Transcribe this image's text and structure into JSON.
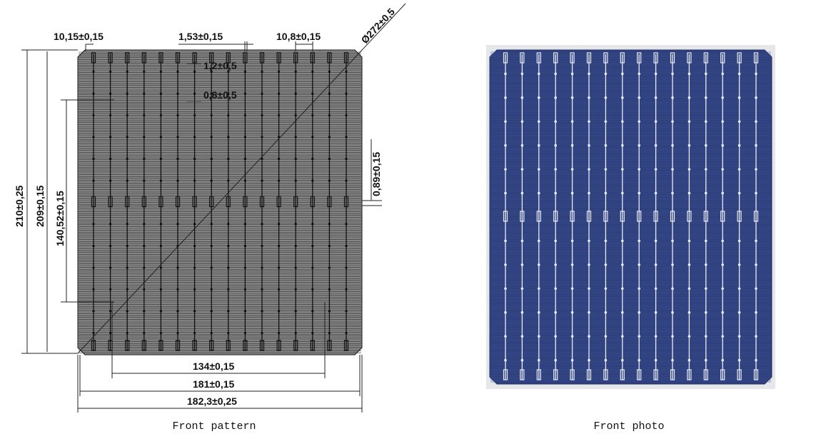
{
  "drawing": {
    "caption": "Front pattern",
    "busbar_count": 16,
    "dimensions": {
      "busbar_edge": "10,15±0,15",
      "busbar_width": "1,53±0,15",
      "busbar_pitch": "10,8±0,15",
      "diameter": "Ø272±0,5",
      "pad_offset_1": "1,2±0,5",
      "pad_offset_2": "0,8±0,5",
      "finger_gap": "0,89±0,15",
      "height_total": "210±0,25",
      "height_inner": "209±0,15",
      "height_pads": "140,52±0,15",
      "width_pads": "134±0,15",
      "width_inner": "181±0,15",
      "width_total": "182,3±0,25"
    },
    "colors": {
      "cell": "#8c8c8c",
      "lines": "#222222"
    }
  },
  "photo": {
    "caption": "Front photo",
    "busbar_count": 16,
    "colors": {
      "cell": "#2d3d7a",
      "background": "#e6e7eb",
      "busbar": "#e8ecf5"
    }
  }
}
